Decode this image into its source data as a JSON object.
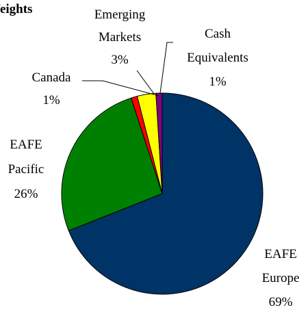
{
  "chart_data": {
    "type": "pie",
    "title": "Weights",
    "categories": [
      "EAFE Europe",
      "EAFE Pacific",
      "Canada",
      "Emerging Markets",
      "Cash Equivalents"
    ],
    "values": [
      69,
      26,
      1,
      3,
      1
    ],
    "value_labels": [
      "69%",
      "26%",
      "1%",
      "3%",
      "1%"
    ],
    "colors": [
      "#003366",
      "#008000",
      "#ff0000",
      "#ffff00",
      "#800080"
    ]
  }
}
